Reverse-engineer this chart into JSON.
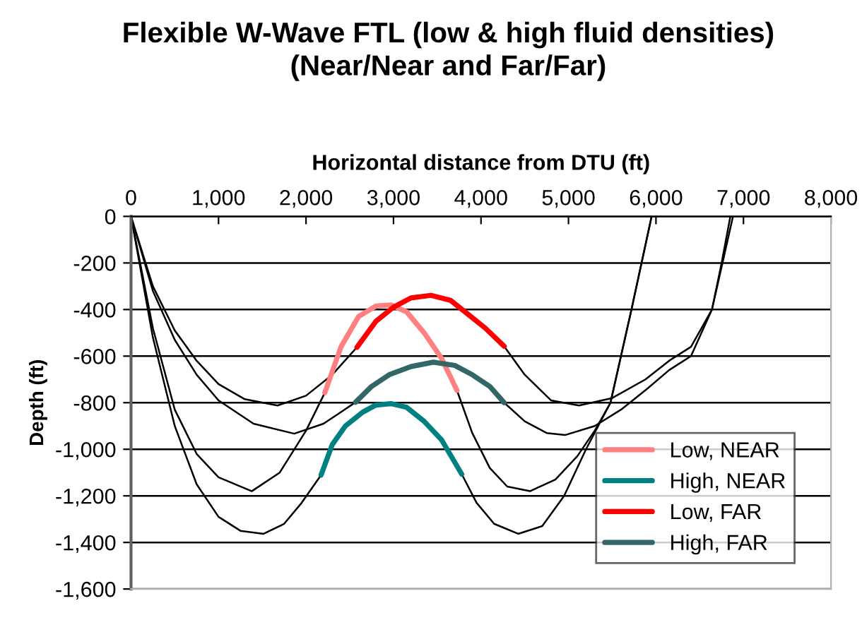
{
  "chart_data": {
    "type": "line",
    "title": "Flexible W-Wave FTL (low & high fluid densities)\n(Near/Near and Far/Far)",
    "xlabel": "Horizontal distance from DTU (ft)",
    "ylabel": "Depth (ft)",
    "xlim": [
      0,
      8000
    ],
    "ylim": [
      -1600,
      0
    ],
    "xticks": [
      0,
      {
        "value": 1000,
        "label": "1,000"
      },
      {
        "value": 2000,
        "label": "2,000"
      },
      {
        "value": 3000,
        "label": "3,000"
      },
      {
        "value": 4000,
        "label": "4,000"
      },
      {
        "value": 5000,
        "label": "5,000"
      },
      {
        "value": 6000,
        "label": "6,000"
      },
      {
        "value": 7000,
        "label": "7,000"
      },
      {
        "value": 8000,
        "label": "8,000"
      }
    ],
    "yticks": [
      {
        "value": -1600,
        "label": "-1,600"
      },
      {
        "value": -1400,
        "label": "-1,400"
      },
      {
        "value": -1200,
        "label": "-1,200"
      },
      {
        "value": -1000,
        "label": "-1,000"
      },
      -800,
      -600,
      -400,
      -200,
      0
    ],
    "grid": "y",
    "legend": "bottom right",
    "marker": "none",
    "line_style": "solid",
    "series": [
      {
        "color": "#000000",
        "x": [
          0,
          250,
          500,
          750,
          1000,
          1380,
          1700,
          2000,
          2215,
          2216,
          3725,
          3900,
          4100,
          4300,
          4560,
          4850,
          5100,
          5300,
          5480,
          5720,
          5950
        ],
        "values": [
          0,
          -480,
          -830,
          -1020,
          -1120,
          -1180,
          -1100,
          -920,
          -757,
          null,
          -747,
          -930,
          -1080,
          -1160,
          -1180,
          -1130,
          -1030,
          -920,
          -800,
          -400,
          0
        ]
      },
      {
        "color": "#000000",
        "x": [
          0,
          250,
          500,
          750,
          1000,
          1250,
          1515,
          1750,
          1950,
          2172,
          2173,
          3780,
          3950,
          4150,
          4425,
          4700,
          4950,
          5200,
          5480,
          5720,
          5950
        ],
        "values": [
          0,
          -520,
          -900,
          -1150,
          -1290,
          -1350,
          -1363,
          -1320,
          -1230,
          -1111,
          null,
          -1107,
          -1230,
          -1320,
          -1363,
          -1330,
          -1200,
          -1000,
          -800,
          -400,
          0
        ]
      },
      {
        "color": "#000000",
        "x": [
          0,
          250,
          500,
          750,
          1000,
          1300,
          1675,
          2000,
          2300,
          2582,
          2583,
          4265,
          4500,
          4800,
          5120,
          5500,
          5880,
          6150,
          6400,
          6640,
          6750,
          6850
        ],
        "values": [
          0,
          -300,
          -490,
          -620,
          -720,
          -785,
          -812,
          -770,
          -680,
          -562,
          null,
          -558,
          -680,
          -790,
          -812,
          -780,
          -700,
          -620,
          -560,
          -400,
          -200,
          0
        ]
      },
      {
        "color": "#000000",
        "x": [
          0,
          250,
          500,
          750,
          1000,
          1400,
          1865,
          2200,
          2400,
          2566,
          2567,
          4265,
          4500,
          4750,
          4960,
          5300,
          5600,
          5900,
          6150,
          6400,
          6640,
          6760,
          6880
        ],
        "values": [
          0,
          -320,
          -530,
          -680,
          -790,
          -890,
          -933,
          -890,
          -840,
          -798,
          null,
          -800,
          -880,
          -930,
          -939,
          -900,
          -830,
          -740,
          -660,
          -600,
          -400,
          -200,
          0
        ]
      },
      {
        "name": "Low, NEAR",
        "color": "#ff8080",
        "x": [
          2215,
          2400,
          2600,
          2800,
          2970,
          3150,
          3350,
          3550,
          3725
        ],
        "values": [
          -757,
          -560,
          -430,
          -385,
          -380,
          -410,
          -500,
          -610,
          -747
        ]
      },
      {
        "name": "High, NEAR",
        "color": "#008080",
        "x": [
          2172,
          2300,
          2450,
          2650,
          2800,
          2970,
          3150,
          3350,
          3550,
          3780
        ],
        "values": [
          -1111,
          -980,
          -900,
          -840,
          -810,
          -804,
          -820,
          -880,
          -960,
          -1107
        ]
      },
      {
        "name": "Low, FAR",
        "color": "#ff0000",
        "x": [
          2582,
          2800,
          3000,
          3200,
          3428,
          3650,
          3850,
          4050,
          4265
        ],
        "values": [
          -562,
          -450,
          -390,
          -350,
          -339,
          -360,
          -420,
          -480,
          -558
        ]
      },
      {
        "name": "High, FAR",
        "color": "#336666",
        "x": [
          2566,
          2750,
          2950,
          3200,
          3455,
          3700,
          3900,
          4100,
          4265
        ],
        "values": [
          -798,
          -730,
          -680,
          -645,
          -626,
          -640,
          -680,
          -730,
          -800
        ]
      }
    ]
  }
}
